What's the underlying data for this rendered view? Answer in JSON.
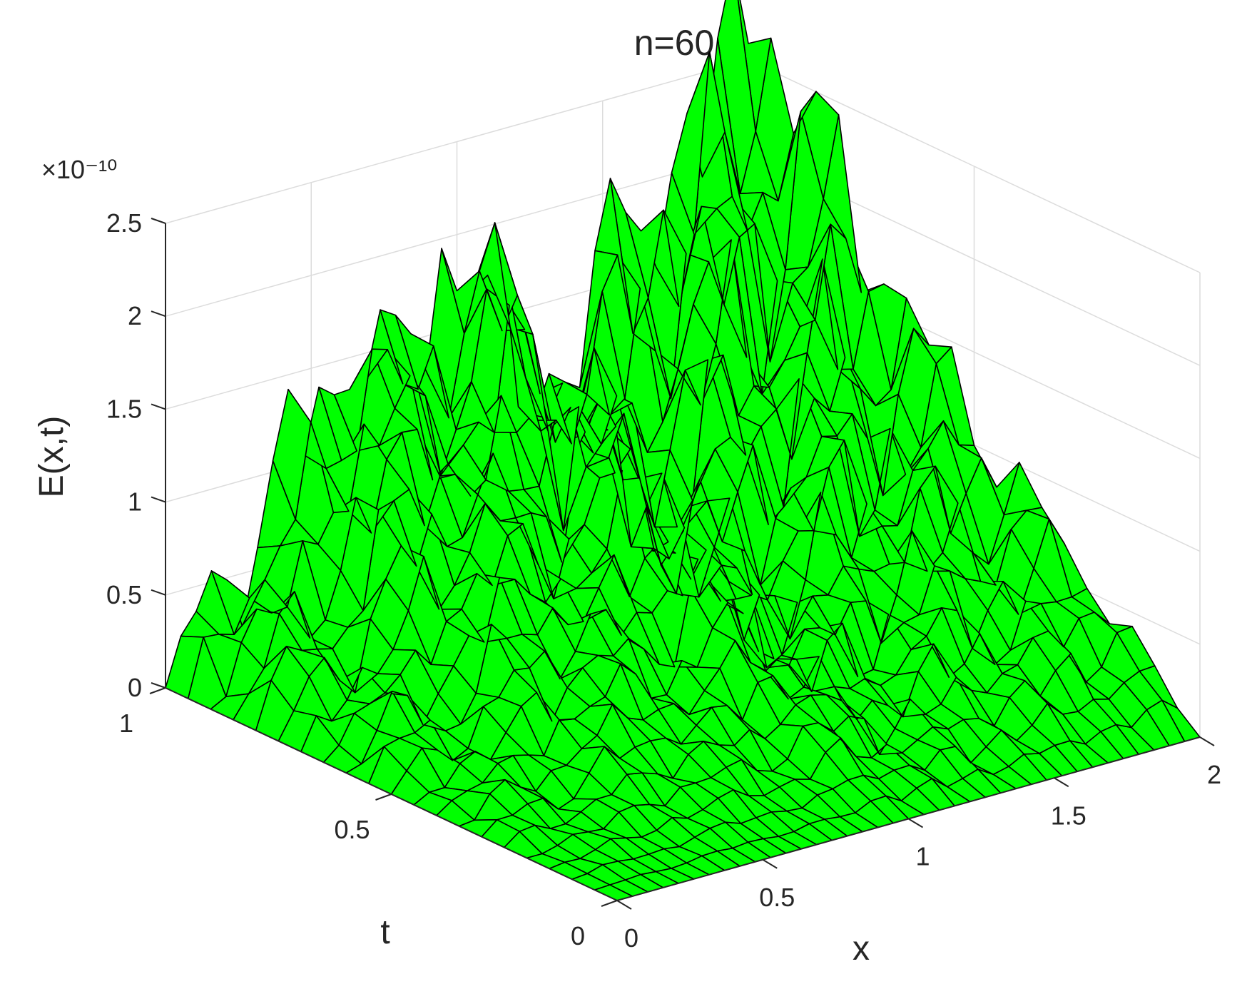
{
  "chart_data": {
    "type": "surface",
    "title": "n=60",
    "xlabel": "x",
    "ylabel": "t",
    "zlabel": "E(x,t)",
    "z_exponent_label": "×10⁻¹⁰",
    "xlim": [
      0,
      2
    ],
    "ylim": [
      0,
      1
    ],
    "zlim": [
      0,
      2.5
    ],
    "x_ticks": [
      "0",
      "0.5",
      "1",
      "1.5",
      "2"
    ],
    "t_ticks": [
      "0",
      "0.5",
      "1"
    ],
    "z_ticks": [
      "0",
      "0.5",
      "1",
      "1.5",
      "2",
      "2.5"
    ],
    "grid": true,
    "face_color": "#00ff00",
    "edge_color": "#000000",
    "x_nodes": [
      0,
      0.0526,
      0.1053,
      0.1579,
      0.2105,
      0.2632,
      0.3158,
      0.3684,
      0.4211,
      0.4737,
      0.5263,
      0.5789,
      0.6316,
      0.6842,
      0.7368,
      0.7895,
      0.8421,
      0.8947,
      0.9474,
      1.0,
      1.0526,
      1.1053,
      1.1579,
      1.2105,
      1.2632,
      1.3158,
      1.3684,
      1.4211,
      1.4737,
      1.5263,
      1.5789,
      1.6316,
      1.6842,
      1.7368,
      1.7895,
      1.8421,
      1.8947,
      1.9474,
      2.0
    ],
    "t_nodes": [
      0,
      0.05,
      0.1,
      0.15,
      0.2,
      0.25,
      0.3,
      0.35,
      0.4,
      0.45,
      0.5,
      0.55,
      0.6,
      0.65,
      0.7,
      0.75,
      0.8,
      0.85,
      0.9,
      0.95,
      1.0
    ],
    "surface_model": {
      "back_edge_t1_peaks": [
        0,
        0.25,
        0.45,
        0.6,
        0.62,
        0.5,
        0.8,
        1.0,
        1.5,
        1.3,
        1.65,
        1.55,
        1.8,
        1.78,
        1.75,
        1.6,
        1.85,
        1.7,
        2.05,
        1.75,
        2.2,
        1.6,
        1.2,
        1.0,
        1.05,
        0.95,
        1.1,
        1.0,
        1.4,
        1.6,
        1.35,
        1.7,
        1.65,
        1.5,
        1.75,
        1.55,
        1.45,
        1.6,
        2.05
      ],
      "right_edge_x2_profile": [
        0,
        0.15,
        0.3,
        0.45,
        0.55,
        0.5,
        0.6,
        0.75,
        0.7,
        0.8,
        0.9,
        0.85,
        1.0,
        1.1,
        1.2,
        1.3,
        1.45,
        1.6,
        1.75,
        1.9,
        2.05
      ],
      "t_zero_edge_value": 0,
      "x_zero_edge_value": 0
    }
  }
}
